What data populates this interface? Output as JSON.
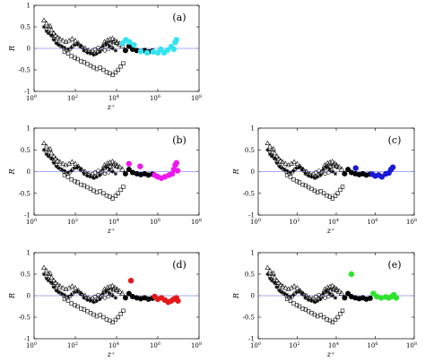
{
  "chart_data": [
    {
      "type": "scatter",
      "panel_label": "(a)",
      "accent": "#33e3f0",
      "xlabel": "z⁺",
      "ylabel": "R",
      "xscale": "log",
      "xlim": [
        1,
        100000000
      ],
      "ylim": [
        -1,
        1
      ],
      "xticks": [
        "10^0",
        "10^2",
        "10^4",
        "10^6",
        "10^8"
      ],
      "yticks": [
        "-1",
        "-0.5",
        "0",
        "0.5",
        "1"
      ],
      "reference_line": {
        "y": 0,
        "color": "#8c8cf0"
      },
      "black_points": [
        [
          27000,
          -0.05
        ],
        [
          40000,
          0.05
        ],
        [
          60000,
          -0.02
        ],
        [
          95000,
          -0.05
        ],
        [
          150000,
          -0.07
        ],
        [
          230000,
          -0.05
        ],
        [
          350000,
          -0.08
        ],
        [
          550000,
          -0.06
        ]
      ],
      "colored_points": [
        [
          20000,
          0.12
        ],
        [
          28000,
          0.2
        ],
        [
          42000,
          0.15
        ],
        [
          70000,
          0.08
        ],
        [
          150000,
          -0.07
        ],
        [
          300000,
          -0.1
        ],
        [
          600000,
          -0.08
        ],
        [
          1000000,
          -0.1
        ],
        [
          1400000,
          -0.02
        ],
        [
          2000000,
          -0.1
        ],
        [
          3000000,
          -0.04
        ],
        [
          4500000,
          0.04
        ],
        [
          6000000,
          -0.02
        ],
        [
          7000000,
          0.14
        ],
        [
          8000000,
          0.2
        ]
      ]
    },
    {
      "type": "scatter",
      "panel_label": "(b)",
      "accent": "#ee17ee",
      "xlabel": "z⁺",
      "ylabel": "R",
      "xscale": "log",
      "xlim": [
        1,
        100000000
      ],
      "ylim": [
        -1,
        1
      ],
      "xticks": [
        "10^0",
        "10^2",
        "10^4",
        "10^6",
        "10^8"
      ],
      "yticks": [
        "-1",
        "-0.5",
        "0",
        "0.5",
        "1"
      ],
      "reference_line": {
        "y": 0,
        "color": "#8c8cf0"
      },
      "black_points": [
        [
          27000,
          -0.05
        ],
        [
          40000,
          0.05
        ],
        [
          60000,
          -0.02
        ],
        [
          95000,
          -0.05
        ],
        [
          150000,
          -0.07
        ],
        [
          230000,
          -0.05
        ],
        [
          350000,
          -0.08
        ],
        [
          550000,
          -0.06
        ]
      ],
      "colored_points": [
        [
          40000,
          0.18
        ],
        [
          140000,
          0.12
        ],
        [
          700000,
          -0.08
        ],
        [
          1000000,
          -0.12
        ],
        [
          1500000,
          -0.15
        ],
        [
          2200000,
          -0.12
        ],
        [
          3500000,
          -0.08
        ],
        [
          5000000,
          -0.05
        ],
        [
          6000000,
          0.05
        ],
        [
          7000000,
          0.15
        ],
        [
          8000000,
          0.2
        ],
        [
          9000000,
          0.02
        ]
      ]
    },
    {
      "type": "scatter",
      "panel_label": "(c)",
      "accent": "#1a1ad6",
      "xlabel": "z⁺",
      "ylabel": "R",
      "xscale": "log",
      "xlim": [
        1,
        100000000
      ],
      "ylim": [
        -1,
        1
      ],
      "xticks": [
        "10^0",
        "10^2",
        "10^4",
        "10^6",
        "10^8"
      ],
      "yticks": [
        "-1",
        "-0.5",
        "0",
        "0.5",
        "1"
      ],
      "reference_line": {
        "y": 0,
        "color": "#8c8cf0"
      },
      "black_points": [
        [
          27000,
          -0.05
        ],
        [
          40000,
          0.05
        ],
        [
          60000,
          -0.02
        ],
        [
          95000,
          -0.05
        ],
        [
          150000,
          -0.07
        ],
        [
          230000,
          -0.05
        ],
        [
          350000,
          -0.08
        ],
        [
          550000,
          -0.06
        ]
      ],
      "colored_points": [
        [
          100000,
          0.08
        ],
        [
          700000,
          -0.06
        ],
        [
          1000000,
          -0.1
        ],
        [
          1500000,
          -0.08
        ],
        [
          2200000,
          -0.12
        ],
        [
          3500000,
          -0.05
        ],
        [
          5000000,
          -0.03
        ],
        [
          6500000,
          0.05
        ],
        [
          8000000,
          0.1
        ]
      ]
    },
    {
      "type": "scatter",
      "panel_label": "(d)",
      "accent": "#e31a1a",
      "xlabel": "z⁺",
      "ylabel": "R",
      "xscale": "log",
      "xlim": [
        1,
        100000000
      ],
      "ylim": [
        -1,
        1
      ],
      "xticks": [
        "10^0",
        "10^2",
        "10^4",
        "10^6",
        "10^8"
      ],
      "yticks": [
        "-1",
        "-0.5",
        "0",
        "0.5",
        "1"
      ],
      "reference_line": {
        "y": 0,
        "color": "#8c8cf0"
      },
      "black_points": [
        [
          27000,
          -0.05
        ],
        [
          40000,
          0.05
        ],
        [
          60000,
          -0.02
        ],
        [
          95000,
          -0.05
        ],
        [
          150000,
          -0.07
        ],
        [
          230000,
          -0.05
        ],
        [
          350000,
          -0.08
        ],
        [
          550000,
          -0.06
        ]
      ],
      "colored_points": [
        [
          50000,
          0.35
        ],
        [
          700000,
          -0.02
        ],
        [
          1000000,
          -0.08
        ],
        [
          1500000,
          -0.05
        ],
        [
          2200000,
          -0.1
        ],
        [
          3200000,
          -0.15
        ],
        [
          4500000,
          -0.12
        ],
        [
          6000000,
          -0.08
        ],
        [
          8000000,
          -0.05
        ],
        [
          9500000,
          -0.12
        ]
      ]
    },
    {
      "type": "scatter",
      "panel_label": "(e)",
      "accent": "#2ee32e",
      "xlabel": "z⁺",
      "ylabel": "R",
      "xscale": "log",
      "xlim": [
        1,
        100000000
      ],
      "ylim": [
        -1,
        1
      ],
      "xticks": [
        "10^0",
        "10^2",
        "10^4",
        "10^6",
        "10^8"
      ],
      "yticks": [
        "-1",
        "-0.5",
        "0",
        "0.5",
        "1"
      ],
      "reference_line": {
        "y": 0,
        "color": "#8c8cf0"
      },
      "black_points": [
        [
          27000,
          -0.05
        ],
        [
          40000,
          0.05
        ],
        [
          60000,
          -0.02
        ],
        [
          95000,
          -0.05
        ],
        [
          150000,
          -0.07
        ],
        [
          230000,
          -0.05
        ],
        [
          350000,
          -0.08
        ],
        [
          550000,
          -0.06
        ]
      ],
      "colored_points": [
        [
          60000,
          0.5
        ],
        [
          800000,
          0.05
        ],
        [
          1200000,
          -0.02
        ],
        [
          2000000,
          -0.05
        ],
        [
          3500000,
          -0.03
        ],
        [
          5000000,
          -0.05
        ],
        [
          7000000,
          -0.02
        ],
        [
          9000000,
          0.02
        ],
        [
          12000000,
          -0.05
        ]
      ]
    }
  ],
  "background_series": {
    "color": "#000000",
    "open_triangles": [
      [
        3,
        0.65
      ],
      [
        4,
        0.58
      ],
      [
        5,
        0.5
      ],
      [
        6,
        0.52
      ],
      [
        7,
        0.42
      ],
      [
        9,
        0.35
      ],
      [
        11,
        0.3
      ],
      [
        14,
        0.25
      ],
      [
        18,
        0.22
      ],
      [
        25,
        0.18
      ],
      [
        35,
        0.15
      ],
      [
        50,
        0.18
      ],
      [
        70,
        0.22
      ],
      [
        100,
        0.18
      ],
      [
        140,
        0.12
      ],
      [
        200,
        0.05
      ],
      [
        300,
        0
      ],
      [
        420,
        -0.05
      ],
      [
        600,
        -0.1
      ],
      [
        850,
        -0.12
      ],
      [
        1200,
        -0.08
      ],
      [
        1700,
        -0.02
      ],
      [
        2500,
        0.08
      ],
      [
        3500,
        0.12
      ],
      [
        5000,
        0.12
      ],
      [
        7000,
        0.15
      ],
      [
        10000,
        0.12
      ]
    ],
    "stars": [
      [
        3,
        0.5
      ],
      [
        4,
        0.4
      ],
      [
        5,
        0.35
      ],
      [
        7,
        0.3
      ],
      [
        9,
        0.2
      ],
      [
        12,
        0.12
      ],
      [
        16,
        0.08
      ],
      [
        22,
        0.05
      ],
      [
        30,
        0.02
      ],
      [
        45,
        -0.02
      ],
      [
        65,
        0.02
      ],
      [
        90,
        0.08
      ],
      [
        130,
        0.1
      ],
      [
        180,
        0.05
      ],
      [
        260,
        -0.05
      ],
      [
        380,
        -0.1
      ],
      [
        550,
        -0.12
      ],
      [
        800,
        -0.15
      ],
      [
        1100,
        -0.12
      ],
      [
        1600,
        -0.08
      ],
      [
        2200,
        0.05
      ],
      [
        3200,
        0.1
      ],
      [
        4500,
        0.05
      ],
      [
        6500,
        0
      ],
      [
        9000,
        -0.05
      ]
    ],
    "open_circles": [
      [
        4,
        0.45
      ],
      [
        5,
        0.38
      ],
      [
        7,
        0.3
      ],
      [
        9,
        0.22
      ],
      [
        12,
        0.15
      ],
      [
        15,
        0.1
      ],
      [
        20,
        0.05
      ],
      [
        28,
        0
      ],
      [
        38,
        -0.05
      ],
      [
        55,
        -0.02
      ],
      [
        75,
        0.05
      ],
      [
        110,
        0.1
      ],
      [
        150,
        0.08
      ],
      [
        220,
        0.02
      ],
      [
        320,
        -0.05
      ],
      [
        450,
        -0.08
      ],
      [
        650,
        -0.06
      ],
      [
        900,
        -0.02
      ],
      [
        1300,
        0.02
      ],
      [
        1900,
        0
      ],
      [
        2700,
        -0.05
      ],
      [
        4000,
        -0.02
      ],
      [
        6000,
        0.02
      ]
    ],
    "open_squares": [
      [
        30,
        -0.08
      ],
      [
        45,
        -0.12
      ],
      [
        65,
        -0.18
      ],
      [
        95,
        -0.22
      ],
      [
        130,
        -0.25
      ],
      [
        190,
        -0.3
      ],
      [
        270,
        -0.32
      ],
      [
        380,
        -0.36
      ],
      [
        550,
        -0.4
      ],
      [
        780,
        -0.44
      ],
      [
        1100,
        -0.48
      ],
      [
        1600,
        -0.45
      ],
      [
        2300,
        -0.5
      ],
      [
        3300,
        -0.55
      ],
      [
        4700,
        -0.58
      ],
      [
        6500,
        -0.62
      ],
      [
        9000,
        -0.56
      ],
      [
        12000,
        -0.5
      ],
      [
        16000,
        -0.42
      ],
      [
        21000,
        -0.35
      ]
    ],
    "open_triangles_tail": [
      [
        2600,
        0.14
      ],
      [
        3600,
        0.18
      ],
      [
        4800,
        0.2
      ],
      [
        6300,
        0.22
      ],
      [
        8200,
        0.18
      ],
      [
        10500,
        0.14
      ],
      [
        14000,
        0.1
      ],
      [
        19000,
        0.05
      ]
    ]
  }
}
